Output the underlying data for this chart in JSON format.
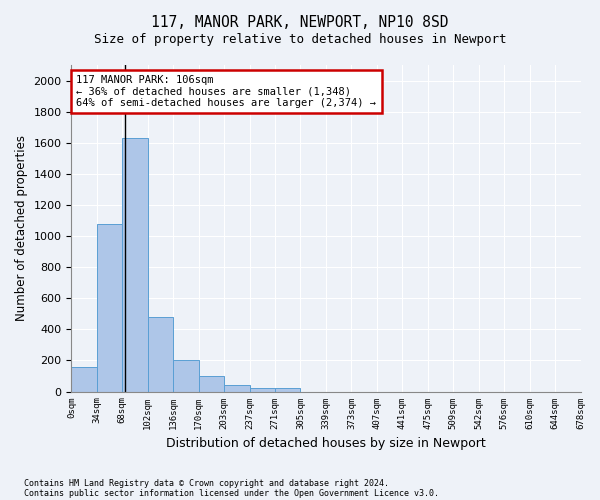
{
  "title1": "117, MANOR PARK, NEWPORT, NP10 8SD",
  "title2": "Size of property relative to detached houses in Newport",
  "xlabel": "Distribution of detached houses by size in Newport",
  "ylabel": "Number of detached properties",
  "bin_labels": [
    "0sqm",
    "34sqm",
    "68sqm",
    "102sqm",
    "136sqm",
    "170sqm",
    "203sqm",
    "237sqm",
    "271sqm",
    "305sqm",
    "339sqm",
    "373sqm",
    "407sqm",
    "441sqm",
    "475sqm",
    "509sqm",
    "542sqm",
    "576sqm",
    "610sqm",
    "644sqm",
    "678sqm"
  ],
  "bar_values": [
    160,
    1080,
    1630,
    480,
    200,
    100,
    45,
    25,
    20,
    0,
    0,
    0,
    0,
    0,
    0,
    0,
    0,
    0,
    0,
    0
  ],
  "bar_color": "#aec6e8",
  "bar_edge_color": "#5a9fd4",
  "property_line_x": 2.12,
  "annotation_title": "117 MANOR PARK: 106sqm",
  "annotation_line1": "← 36% of detached houses are smaller (1,348)",
  "annotation_line2": "64% of semi-detached houses are larger (2,374) →",
  "annotation_box_edgecolor": "#cc0000",
  "ylim": [
    0,
    2100
  ],
  "yticks": [
    0,
    200,
    400,
    600,
    800,
    1000,
    1200,
    1400,
    1600,
    1800,
    2000
  ],
  "footnote1": "Contains HM Land Registry data © Crown copyright and database right 2024.",
  "footnote2": "Contains public sector information licensed under the Open Government Licence v3.0.",
  "bg_color": "#eef2f8"
}
